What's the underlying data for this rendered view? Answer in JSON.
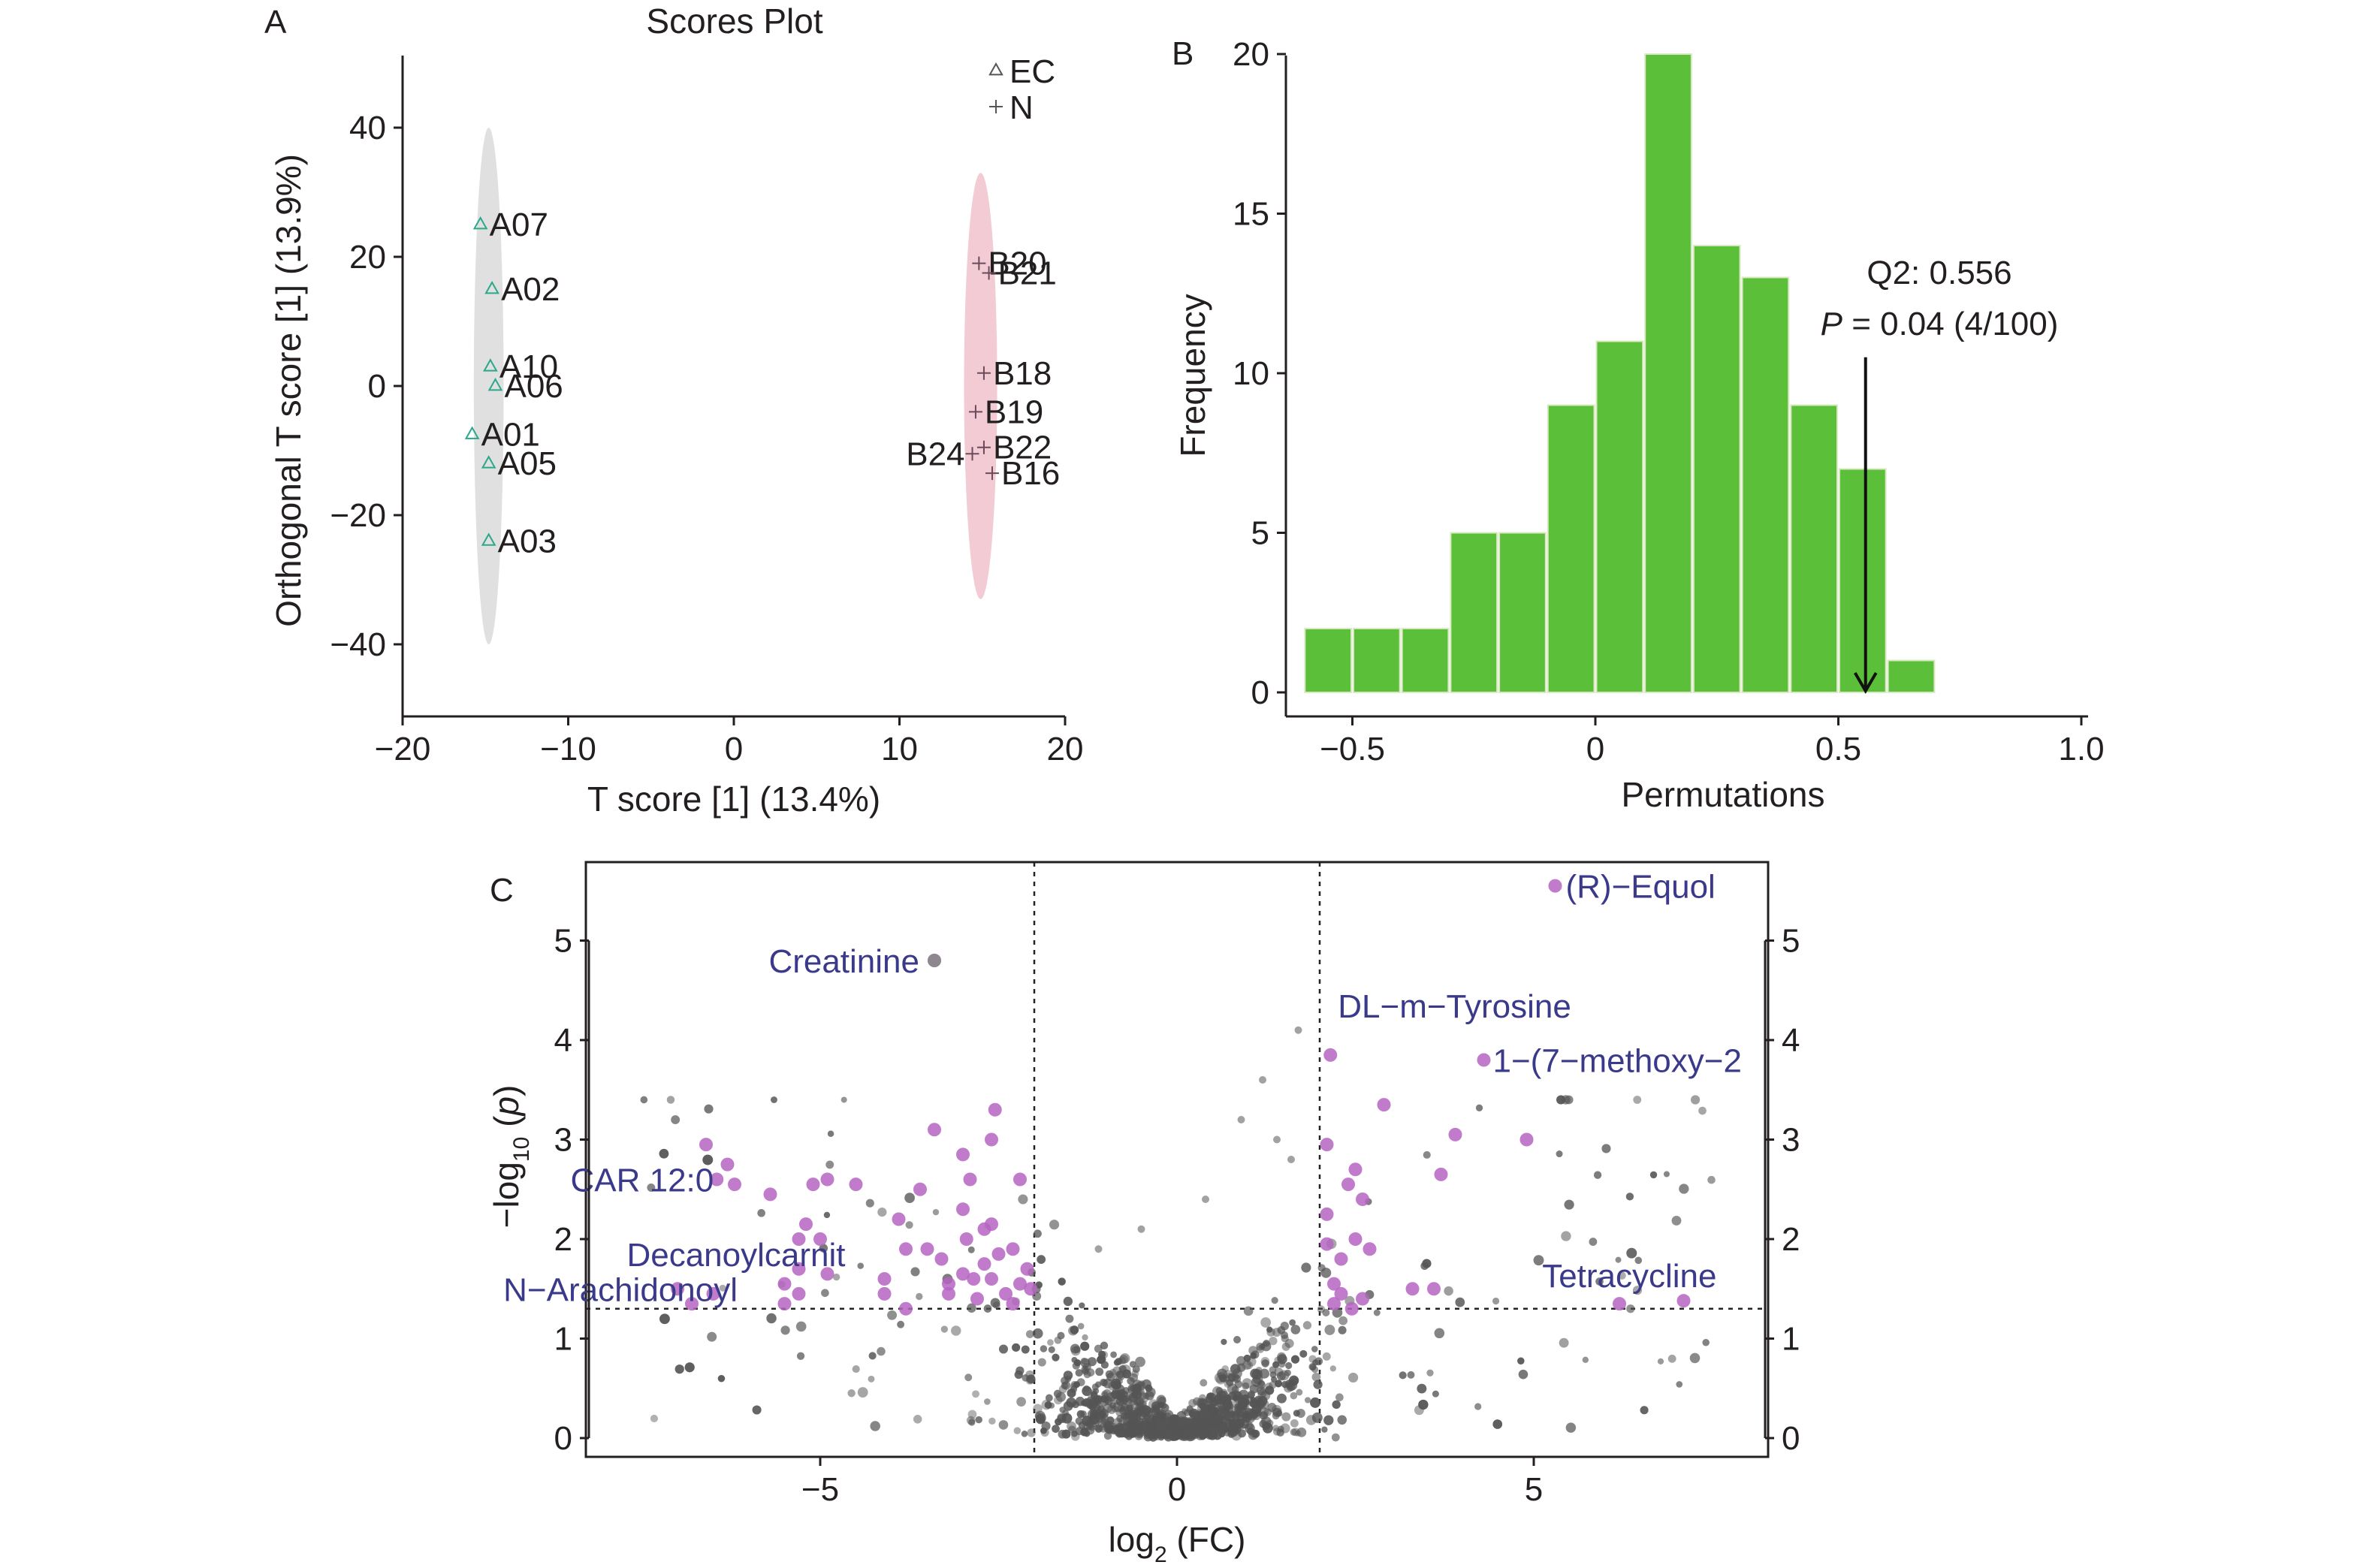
{
  "panels": {
    "a": {
      "letter": "A",
      "title": "Scores Plot"
    },
    "b": {
      "letter": "B"
    },
    "c": {
      "letter": "C"
    }
  },
  "chart_data": [
    {
      "id": "A",
      "type": "scatter",
      "title": "Scores Plot",
      "xlabel": "T score [1] (13.4%)",
      "ylabel": "Orthogonal T score [1] (13.9%)",
      "xlim": [
        -20,
        20
      ],
      "ylim": [
        -50,
        50
      ],
      "xticks": [
        -20,
        -10,
        0,
        10,
        20
      ],
      "yticks": [
        -40,
        -20,
        0,
        20,
        40
      ],
      "xtick_labels": [
        "−20",
        "−10",
        "0",
        "10",
        "20"
      ],
      "ytick_labels": [
        "−40",
        "−20",
        "0",
        "20",
        "40"
      ],
      "legend": [
        {
          "name": "EC",
          "marker": "triangle"
        },
        {
          "name": "N",
          "marker": "plus"
        }
      ],
      "series": [
        {
          "name": "EC",
          "marker": "triangle",
          "color": "#2aa88a",
          "ellipse": {
            "center": [
              -14.8,
              0
            ],
            "radii": [
              0.9,
              40
            ],
            "color": "#dadada"
          },
          "points": [
            {
              "label": "A07",
              "x": -15.3,
              "y": 25
            },
            {
              "label": "A02",
              "x": -14.6,
              "y": 15
            },
            {
              "label": "A10",
              "x": -14.7,
              "y": 3
            },
            {
              "label": "A06",
              "x": -14.4,
              "y": 0
            },
            {
              "label": "A01",
              "x": -15.8,
              "y": -7.5
            },
            {
              "label": "A05",
              "x": -14.8,
              "y": -12
            },
            {
              "label": "A03",
              "x": -14.8,
              "y": -24
            }
          ]
        },
        {
          "name": "N",
          "marker": "plus",
          "color": "#6b4b5a",
          "ellipse": {
            "center": [
              14.9,
              0
            ],
            "radii": [
              1.0,
              33
            ],
            "color": "#f0c2cc"
          },
          "points": [
            {
              "label": "B20",
              "x": 14.8,
              "y": 19
            },
            {
              "label": "B21",
              "x": 15.4,
              "y": 17.5
            },
            {
              "label": "B18",
              "x": 15.1,
              "y": 2
            },
            {
              "label": "B19",
              "x": 14.6,
              "y": -4
            },
            {
              "label": "B22",
              "x": 15.1,
              "y": -9.5
            },
            {
              "label": "B24",
              "x": 14.4,
              "y": -10.5
            },
            {
              "label": "B16",
              "x": 15.6,
              "y": -13.5
            }
          ]
        }
      ]
    },
    {
      "id": "B",
      "type": "bar",
      "xlabel": "Permutations",
      "ylabel": "Frequency",
      "xlim": [
        -0.65,
        1.0
      ],
      "ylim": [
        0,
        20
      ],
      "xticks": [
        -0.5,
        0,
        0.5,
        1.0
      ],
      "yticks": [
        0,
        5,
        10,
        15,
        20
      ],
      "xtick_labels": [
        "−0.5",
        "0",
        "0.5",
        "1.0"
      ],
      "ytick_labels": [
        "0",
        "5",
        "10",
        "15",
        "20"
      ],
      "bar_color": "#5cbf3a",
      "bins": [
        {
          "start": -0.6,
          "end": -0.5,
          "count": 2
        },
        {
          "start": -0.5,
          "end": -0.4,
          "count": 2
        },
        {
          "start": -0.4,
          "end": -0.3,
          "count": 2
        },
        {
          "start": -0.3,
          "end": -0.2,
          "count": 5
        },
        {
          "start": -0.2,
          "end": -0.1,
          "count": 5
        },
        {
          "start": -0.1,
          "end": 0.0,
          "count": 9
        },
        {
          "start": 0.0,
          "end": 0.1,
          "count": 11
        },
        {
          "start": 0.1,
          "end": 0.2,
          "count": 20
        },
        {
          "start": 0.2,
          "end": 0.3,
          "count": 14
        },
        {
          "start": 0.3,
          "end": 0.4,
          "count": 13
        },
        {
          "start": 0.4,
          "end": 0.5,
          "count": 9
        },
        {
          "start": 0.5,
          "end": 0.6,
          "count": 7
        },
        {
          "start": 0.6,
          "end": 0.7,
          "count": 1
        }
      ],
      "annotation": {
        "line1": "Q2: 0.556",
        "p_italic": "P",
        "line2_rest": " = 0.04 (4/100)",
        "arrow_x": 0.556,
        "arrow_from_y": 10.5,
        "arrow_to_y": 0
      }
    },
    {
      "id": "C",
      "type": "scatter",
      "xlabel_main": "log",
      "xlabel_sub": "2",
      "xlabel_rest": " (FC)",
      "ylabel_pre": "−log",
      "ylabel_sub": "10",
      "ylabel_open": " (",
      "ylabel_italic": "p",
      "ylabel_close": ")",
      "xlim": [
        -8.2,
        8.2
      ],
      "ylim": [
        -0.1,
        5.75
      ],
      "xticks": [
        -5,
        0,
        5
      ],
      "yticks": [
        0,
        1,
        2,
        3,
        4,
        5
      ],
      "xtick_labels": [
        "−5",
        "0",
        "5"
      ],
      "ytick_labels": [
        "0",
        "1",
        "2",
        "3",
        "4",
        "5"
      ],
      "thresholds": {
        "fc_left": -2,
        "fc_right": 2,
        "p": 1.3
      },
      "significant_color": "#b565c2",
      "background_color": "#555555",
      "significant_points": [
        [
          -6.5,
          1.45
        ],
        [
          -6.6,
          2.95
        ],
        [
          -6.45,
          2.6
        ],
        [
          -6.2,
          2.55
        ],
        [
          -6.3,
          2.75
        ],
        [
          -7,
          1.5
        ],
        [
          -6.8,
          1.35
        ],
        [
          -5.5,
          1.55
        ],
        [
          -5.7,
          2.45
        ],
        [
          -5.3,
          2.0
        ],
        [
          -5.2,
          2.15
        ],
        [
          -5.1,
          2.55
        ],
        [
          -4.9,
          2.6
        ],
        [
          -5.0,
          2.0
        ],
        [
          -5.3,
          1.7
        ],
        [
          -5.5,
          1.35
        ],
        [
          -5.3,
          1.45
        ],
        [
          -4.9,
          1.65
        ],
        [
          -4.5,
          2.55
        ],
        [
          -4.1,
          1.45
        ],
        [
          -4.1,
          1.6
        ],
        [
          -3.8,
          1.9
        ],
        [
          -3.9,
          2.2
        ],
        [
          -3.6,
          2.5
        ],
        [
          -3.5,
          1.9
        ],
        [
          -3.4,
          3.1
        ],
        [
          -3.3,
          1.8
        ],
        [
          -3.2,
          1.45
        ],
        [
          -3.2,
          1.55
        ],
        [
          -3.0,
          1.65
        ],
        [
          -3.0,
          2.3
        ],
        [
          -3.0,
          2.85
        ],
        [
          -2.9,
          2.6
        ],
        [
          -2.95,
          2.0
        ],
        [
          -2.85,
          1.6
        ],
        [
          -2.8,
          1.4
        ],
        [
          -2.7,
          1.75
        ],
        [
          -2.7,
          2.1
        ],
        [
          -2.6,
          1.6
        ],
        [
          -2.6,
          3.0
        ],
        [
          -2.55,
          3.3
        ],
        [
          -2.5,
          1.85
        ],
        [
          -2.4,
          1.45
        ],
        [
          -2.3,
          1.9
        ],
        [
          -2.2,
          1.55
        ],
        [
          -2.2,
          2.6
        ],
        [
          -2.1,
          1.7
        ],
        [
          -2.05,
          1.5
        ],
        [
          -2.6,
          2.15
        ],
        [
          -3.8,
          1.3
        ],
        [
          -2.3,
          1.35
        ],
        [
          2.1,
          2.95
        ],
        [
          2.2,
          1.35
        ],
        [
          2.1,
          1.95
        ],
        [
          2.1,
          2.25
        ],
        [
          2.15,
          3.85
        ],
        [
          2.2,
          1.55
        ],
        [
          2.3,
          1.45
        ],
        [
          2.3,
          1.8
        ],
        [
          2.4,
          2.55
        ],
        [
          2.45,
          1.3
        ],
        [
          2.5,
          2.0
        ],
        [
          2.5,
          2.7
        ],
        [
          2.6,
          1.4
        ],
        [
          2.6,
          2.4
        ],
        [
          2.7,
          1.9
        ],
        [
          2.9,
          3.35
        ],
        [
          3.3,
          1.5
        ],
        [
          3.6,
          1.5
        ],
        [
          3.7,
          2.65
        ],
        [
          3.9,
          3.05
        ],
        [
          4.3,
          3.8
        ],
        [
          4.9,
          3.0
        ],
        [
          5.3,
          5.55
        ],
        [
          6.2,
          1.35
        ],
        [
          7.1,
          1.38
        ],
        [
          -3.4,
          4.8
        ]
      ],
      "labels": [
        {
          "text": "(R)−Equol",
          "x": 5.3,
          "y": 5.55
        },
        {
          "text": "Creatinine",
          "x": -3.4,
          "y": 4.8
        },
        {
          "text": "DL−m−Tyrosine",
          "x": 2.15,
          "y": 4.15
        },
        {
          "text": "1−(7−methoxy−2",
          "x": 4.3,
          "y": 3.8
        },
        {
          "text": "CAR 12:0",
          "x": -6.45,
          "y": 2.6
        },
        {
          "text": "Decanoylcarnit",
          "x": -5.3,
          "y": 1.85
        },
        {
          "text": "N−Arachidonoyl",
          "x": -7.0,
          "y": 1.5
        },
        {
          "text": "Tetracycline",
          "x": 7.1,
          "y": 1.38
        }
      ]
    }
  ]
}
